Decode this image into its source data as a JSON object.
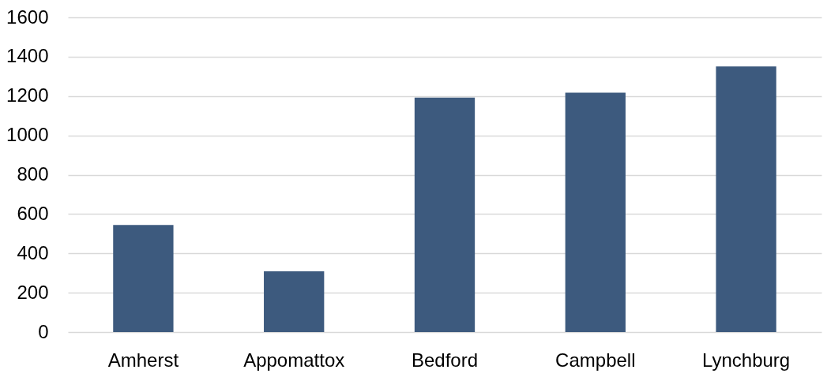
{
  "chart_data": {
    "type": "bar",
    "categories": [
      "Amherst",
      "Appomattox",
      "Bedford",
      "Campbell",
      "Lynchburg"
    ],
    "values": [
      544,
      309,
      1192,
      1217,
      1350
    ],
    "color": "#3d5a7e",
    "ylim": [
      0,
      1600
    ],
    "yticks": [
      0,
      200,
      400,
      600,
      800,
      1000,
      1200,
      1400,
      1600
    ],
    "grid": "y"
  }
}
